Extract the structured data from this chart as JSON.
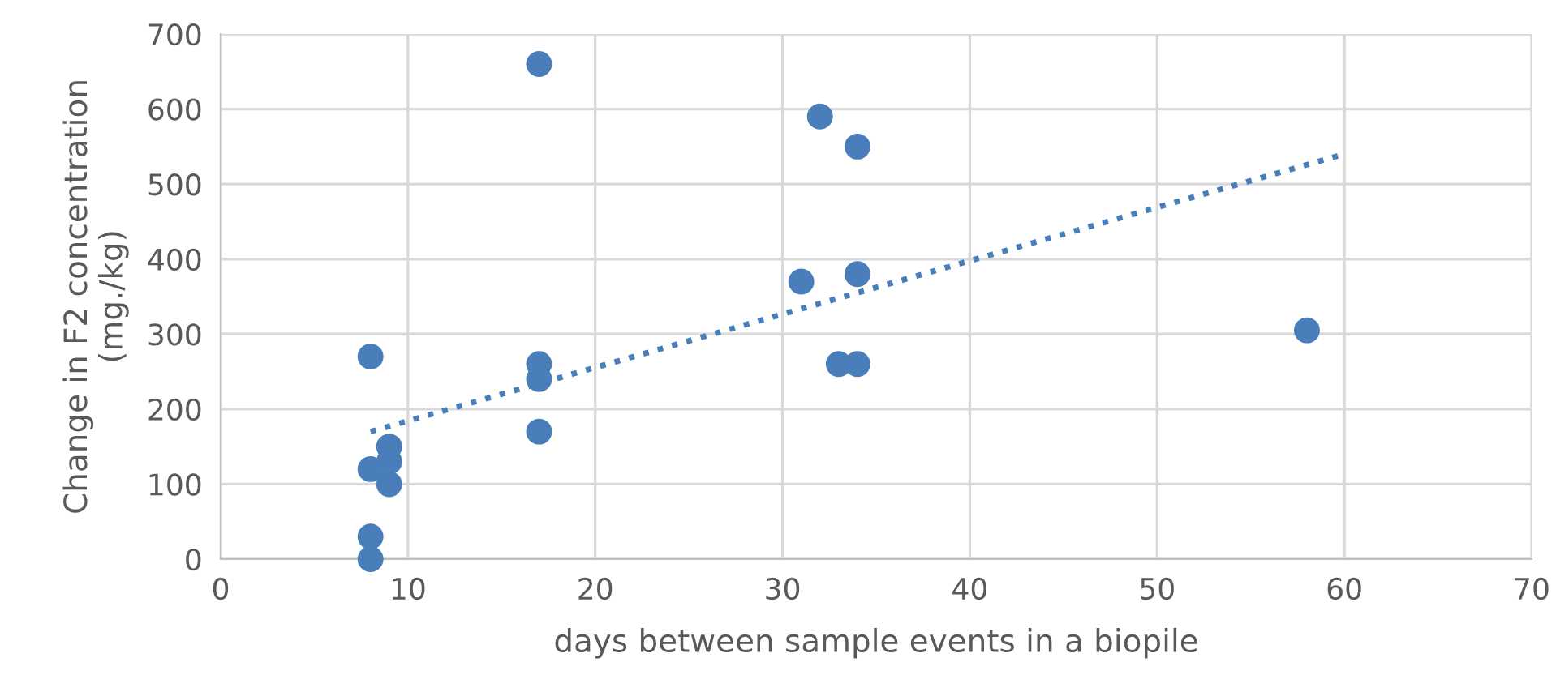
{
  "chart_data": {
    "type": "scatter",
    "xlabel": "days between sample events in a biopile",
    "ylabel": "Change in F2 concentration\n(mg./kg)",
    "xlim": [
      0,
      70
    ],
    "ylim": [
      0,
      700
    ],
    "xticks": [
      0,
      10,
      20,
      30,
      40,
      50,
      60,
      70
    ],
    "yticks": [
      0,
      100,
      200,
      300,
      400,
      500,
      600,
      700
    ],
    "grid": true,
    "legend": false,
    "series": [
      {
        "type": "scatter",
        "color": "#4a7ebb",
        "marker": "circle",
        "x": [
          8,
          8,
          8,
          8,
          9,
          9,
          9,
          17,
          17,
          17,
          17,
          31,
          32,
          34,
          34,
          33,
          34,
          58
        ],
        "values": [
          270,
          120,
          30,
          0,
          150,
          130,
          100,
          660,
          260,
          240,
          170,
          370,
          590,
          550,
          380,
          260,
          260,
          305
        ]
      },
      {
        "type": "line",
        "color": "#4a7ebb",
        "line_style": "dotted",
        "marker": "none",
        "x": [
          8,
          60
        ],
        "values": [
          170,
          540
        ]
      }
    ]
  }
}
